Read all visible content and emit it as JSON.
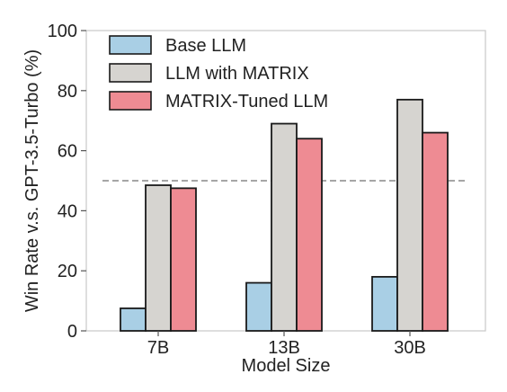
{
  "chart_data": {
    "type": "bar",
    "categories": [
      "7B",
      "13B",
      "30B"
    ],
    "series": [
      {
        "name": "Base LLM",
        "values": [
          7.5,
          16,
          18
        ],
        "color": "#a9cfe5"
      },
      {
        "name": "LLM with MATRIX",
        "values": [
          48.5,
          69,
          77
        ],
        "color": "#d6d4d0"
      },
      {
        "name": "MATRIX-Tuned LLM",
        "values": [
          47.5,
          64,
          66
        ],
        "color": "#ee8b93"
      }
    ],
    "title": "",
    "xlabel": "Model Size",
    "ylabel": "Win Rate v.s. GPT-3.5-Turbo (%)",
    "ylim": [
      0,
      100
    ],
    "yticks": [
      0,
      20,
      40,
      60,
      80,
      100
    ],
    "reference_line": {
      "value": 50,
      "style": "dashed",
      "color": "#888888"
    },
    "grid": false,
    "legend_position": "top-left"
  }
}
